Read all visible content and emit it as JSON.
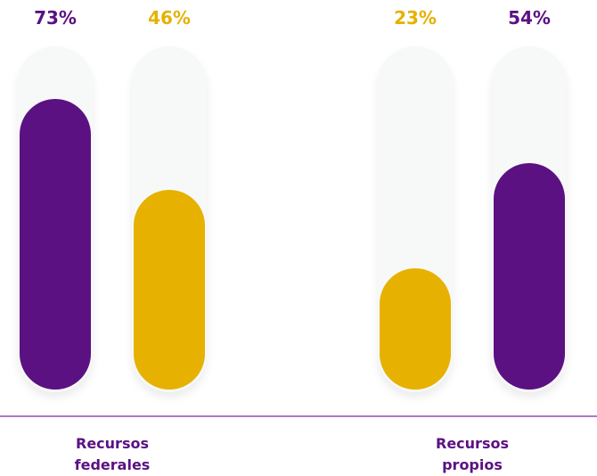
{
  "chart_data": {
    "type": "bar",
    "categories": [
      "Recursos federales",
      "Recursos propios"
    ],
    "series": [
      {
        "values": [
          73,
          23
        ],
        "value_labels": [
          "73%",
          "23%"
        ],
        "colors": [
          "#5b1182",
          "#e6b100"
        ]
      },
      {
        "values": [
          46,
          54
        ],
        "value_labels": [
          "46%",
          "54%"
        ],
        "colors": [
          "#e6b100",
          "#5b1182"
        ]
      }
    ]
  }
}
